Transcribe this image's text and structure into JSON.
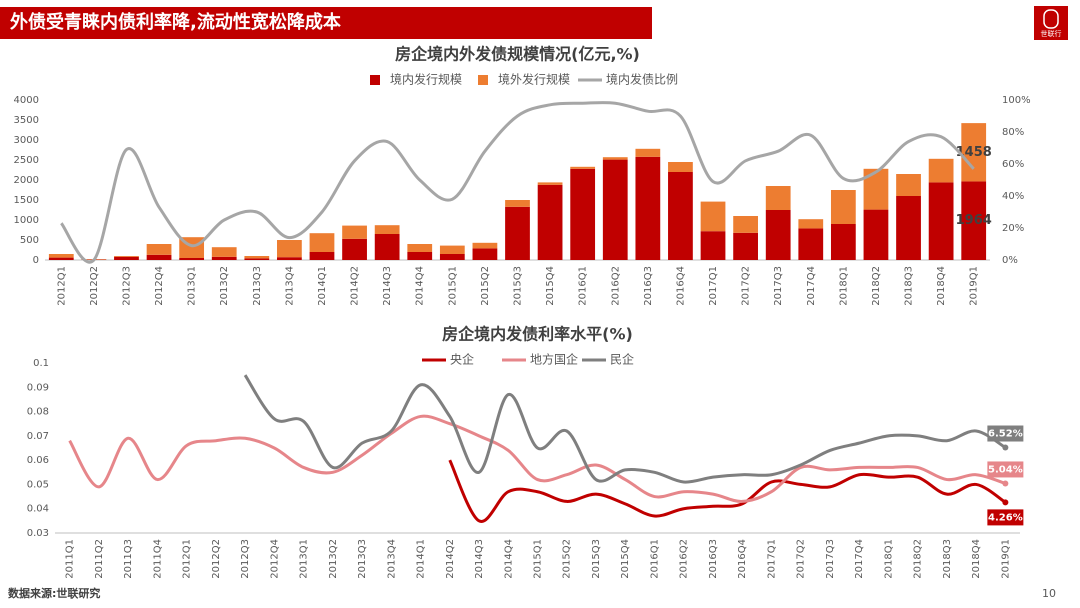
{
  "header": {
    "title": "外债受青睐内债利率降,流动性宽松降成本",
    "logo": "世联行"
  },
  "footer": {
    "source": "数据来源:世联研究",
    "page": "10"
  },
  "chart_data": [
    {
      "type": "bar",
      "title": "房企境内外发债规模情况(亿元,%)",
      "stacked": true,
      "grid": false,
      "categories": [
        "2012Q1",
        "2012Q2",
        "2012Q3",
        "2012Q4",
        "2013Q1",
        "2013Q2",
        "2013Q3",
        "2013Q4",
        "2014Q1",
        "2014Q2",
        "2014Q3",
        "2014Q4",
        "2015Q1",
        "2015Q2",
        "2015Q3",
        "2015Q4",
        "2016Q1",
        "2016Q2",
        "2016Q3",
        "2016Q4",
        "2017Q1",
        "2017Q2",
        "2017Q3",
        "2017Q4",
        "2018Q1",
        "2018Q2",
        "2018Q3",
        "2018Q4",
        "2019Q1"
      ],
      "ylim": [
        0,
        4000
      ],
      "yticks": [
        0,
        500,
        1000,
        1500,
        2000,
        2500,
        3000,
        3500,
        4000
      ],
      "y2lim": [
        0,
        100
      ],
      "y2ticks": [
        {
          "value": 0,
          "label": "0%"
        },
        {
          "value": 20,
          "label": "20%"
        },
        {
          "value": 40,
          "label": "40%"
        },
        {
          "value": 60,
          "label": "60%"
        },
        {
          "value": 80,
          "label": "80%"
        },
        {
          "value": 100,
          "label": "100%"
        }
      ],
      "series": [
        {
          "name": "境内发行规模",
          "type": "bar",
          "color": "#c00000",
          "values": [
            60,
            10,
            80,
            130,
            50,
            80,
            40,
            70,
            200,
            530,
            650,
            200,
            150,
            290,
            1330,
            1880,
            2280,
            2510,
            2580,
            2200,
            720,
            680,
            1250,
            790,
            900,
            1260,
            1600,
            1940,
            1964
          ],
          "value_labels": [
            null,
            null,
            null,
            null,
            null,
            null,
            null,
            null,
            null,
            null,
            null,
            null,
            null,
            null,
            null,
            null,
            null,
            null,
            null,
            null,
            null,
            null,
            null,
            null,
            null,
            null,
            null,
            null,
            "1964"
          ]
        },
        {
          "name": "境外发行规模",
          "type": "bar",
          "color": "#ed7d31",
          "values": [
            90,
            10,
            20,
            270,
            520,
            240,
            60,
            430,
            470,
            330,
            220,
            200,
            210,
            140,
            170,
            60,
            50,
            60,
            200,
            250,
            740,
            420,
            600,
            230,
            850,
            1020,
            550,
            590,
            1458
          ],
          "value_labels": [
            null,
            null,
            null,
            null,
            null,
            null,
            null,
            null,
            null,
            null,
            null,
            null,
            null,
            null,
            null,
            null,
            null,
            null,
            null,
            null,
            null,
            null,
            null,
            null,
            null,
            null,
            null,
            null,
            "1458"
          ]
        },
        {
          "name": "境内发债比例",
          "type": "line",
          "axis": "y2",
          "color": "#a6a6a6",
          "values": [
            23,
            0,
            69,
            33,
            9,
            25,
            30,
            14,
            30,
            62,
            74,
            50,
            38,
            68,
            90,
            97,
            98,
            98,
            93,
            90,
            49,
            62,
            68,
            78,
            51,
            55,
            74,
            77,
            57
          ]
        }
      ]
    },
    {
      "type": "line",
      "title": "房企境内发债利率水平(%)",
      "grid": false,
      "categories": [
        "2011Q1",
        "2011Q2",
        "2011Q3",
        "2011Q4",
        "2012Q1",
        "2012Q2",
        "2012Q3",
        "2012Q4",
        "2013Q1",
        "2013Q2",
        "2013Q3",
        "2013Q4",
        "2014Q1",
        "2014Q2",
        "2014Q3",
        "2014Q4",
        "2015Q1",
        "2015Q2",
        "2015Q3",
        "2015Q4",
        "2016Q1",
        "2016Q2",
        "2016Q3",
        "2016Q4",
        "2017Q1",
        "2017Q2",
        "2017Q3",
        "2017Q4",
        "2018Q1",
        "2018Q2",
        "2018Q3",
        "2018Q4",
        "2019Q1"
      ],
      "ylim": [
        0.03,
        0.1
      ],
      "yticks": [
        0.03,
        0.04,
        0.05,
        0.06,
        0.07,
        0.08,
        0.09,
        0.1
      ],
      "series": [
        {
          "name": "央企",
          "color": "#c00000",
          "values": [
            null,
            null,
            null,
            null,
            null,
            null,
            null,
            null,
            null,
            null,
            null,
            null,
            null,
            0.06,
            0.035,
            0.047,
            0.047,
            0.043,
            0.046,
            0.042,
            0.037,
            0.04,
            0.041,
            0.042,
            0.051,
            0.05,
            0.049,
            0.054,
            0.053,
            0.053,
            0.046,
            0.05,
            0.0426
          ],
          "value_labels": [
            null,
            null,
            null,
            null,
            null,
            null,
            null,
            null,
            null,
            null,
            null,
            null,
            null,
            null,
            null,
            null,
            null,
            null,
            null,
            null,
            null,
            null,
            null,
            null,
            null,
            null,
            null,
            null,
            null,
            null,
            null,
            null,
            "4.26%"
          ]
        },
        {
          "name": "地方国企",
          "color": "#e6868a",
          "values": [
            0.068,
            0.049,
            0.069,
            0.052,
            0.066,
            0.068,
            0.069,
            0.065,
            0.057,
            0.055,
            0.062,
            0.071,
            0.078,
            0.075,
            0.07,
            0.064,
            0.052,
            0.054,
            0.058,
            0.052,
            0.045,
            0.047,
            0.046,
            0.043,
            0.047,
            0.057,
            0.056,
            0.057,
            0.057,
            0.057,
            0.052,
            0.054,
            0.0504
          ],
          "value_labels": [
            null,
            null,
            null,
            null,
            null,
            null,
            null,
            null,
            null,
            null,
            null,
            null,
            null,
            null,
            null,
            null,
            null,
            null,
            null,
            null,
            null,
            null,
            null,
            null,
            null,
            null,
            null,
            null,
            null,
            null,
            null,
            null,
            "5.04%"
          ]
        },
        {
          "name": "民企",
          "color": "#7f7f7f",
          "values": [
            null,
            null,
            null,
            null,
            null,
            null,
            0.095,
            0.077,
            0.076,
            0.057,
            0.067,
            0.072,
            0.091,
            0.078,
            0.055,
            0.087,
            0.065,
            0.072,
            0.052,
            0.056,
            0.055,
            0.051,
            0.053,
            0.054,
            0.054,
            0.058,
            0.064,
            0.067,
            0.07,
            0.07,
            0.068,
            0.072,
            0.0652
          ],
          "value_labels": [
            null,
            null,
            null,
            null,
            null,
            null,
            null,
            null,
            null,
            null,
            null,
            null,
            null,
            null,
            null,
            null,
            null,
            null,
            null,
            null,
            null,
            null,
            null,
            null,
            null,
            null,
            null,
            null,
            null,
            null,
            null,
            null,
            "6.52%"
          ]
        }
      ]
    }
  ]
}
